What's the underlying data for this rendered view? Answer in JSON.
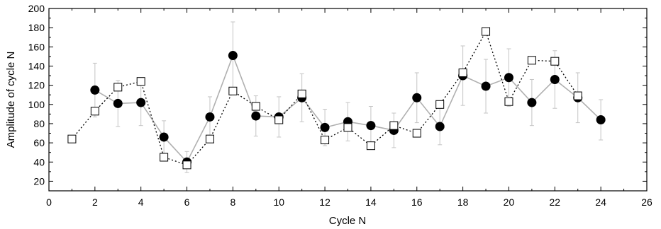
{
  "chart_data": {
    "type": "scatter",
    "xlabel": "Cycle N",
    "ylabel": "Amplitude of cycle N",
    "xlim": [
      0,
      26
    ],
    "ylim": [
      10,
      200
    ],
    "xticks": [
      0,
      2,
      4,
      6,
      8,
      10,
      12,
      14,
      16,
      18,
      20,
      22,
      24,
      26
    ],
    "yticks": [
      20,
      40,
      60,
      80,
      100,
      120,
      140,
      160,
      180,
      200
    ],
    "grid": false,
    "series": [
      {
        "marker": "filled-circle",
        "line": "solid",
        "line_color": "#b0b0b0",
        "marker_color": "#000000",
        "x": [
          2,
          3,
          4,
          5,
          6,
          7,
          8,
          9,
          10,
          11,
          12,
          13,
          14,
          15,
          16,
          17,
          18,
          19,
          20,
          21,
          22,
          23,
          24
        ],
        "y": [
          115,
          101,
          102,
          66,
          40,
          87,
          151,
          88,
          87,
          107,
          76,
          82,
          78,
          73,
          107,
          77,
          130,
          119,
          128,
          102,
          126,
          107,
          84
        ],
        "error": [
          28,
          24,
          24,
          17,
          11,
          21,
          35,
          21,
          21,
          25,
          19,
          20,
          20,
          18,
          26,
          19,
          31,
          28,
          30,
          24,
          30,
          26,
          21
        ]
      },
      {
        "marker": "open-square",
        "line": "dotted",
        "line_color": "#000000",
        "marker_color": "#000000",
        "x": [
          1,
          2,
          3,
          4,
          5,
          6,
          7,
          8,
          9,
          10,
          11,
          12,
          13,
          14,
          15,
          16,
          17,
          18,
          19,
          20,
          21,
          22,
          23
        ],
        "y": [
          64,
          93,
          118,
          124,
          45,
          37,
          64,
          114,
          98,
          84,
          111,
          63,
          76,
          57,
          78,
          70,
          100,
          133,
          176,
          103,
          146,
          145,
          109
        ]
      }
    ]
  }
}
